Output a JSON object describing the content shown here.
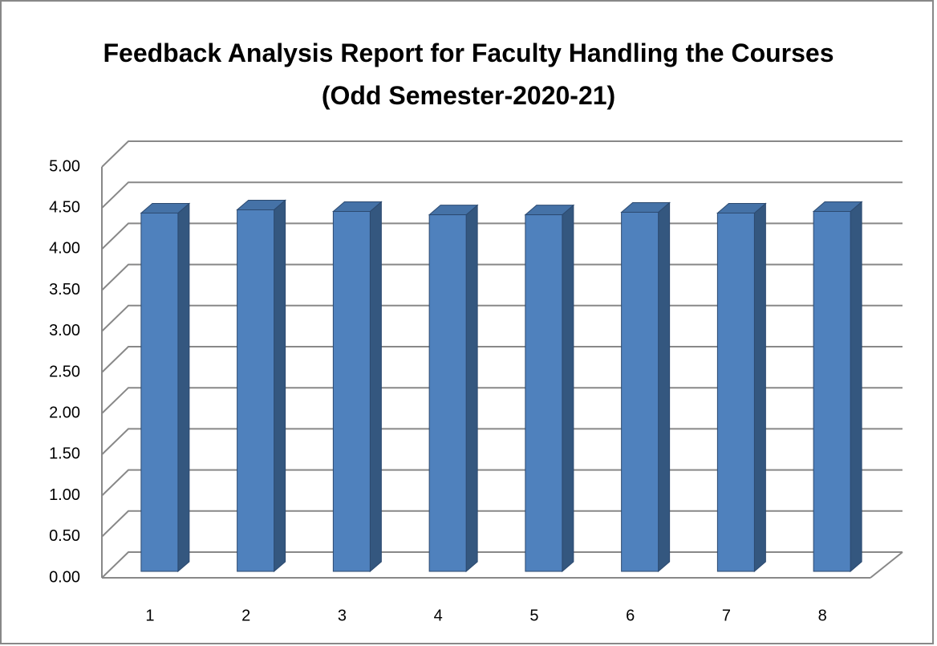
{
  "chart_data": {
    "type": "bar3d",
    "title": "Feedback Analysis Report for Faculty Handling the Courses (Odd Semester-2020-21)",
    "categories": [
      "1",
      "2",
      "3",
      "4",
      "5",
      "6",
      "7",
      "8"
    ],
    "values": [
      4.36,
      4.4,
      4.38,
      4.34,
      4.34,
      4.37,
      4.36,
      4.38
    ],
    "color": "#4f81bd",
    "ylim": [
      0,
      5
    ],
    "yticks": [
      {
        "value": 0,
        "label": "0.00"
      },
      {
        "value": 0.5,
        "label": "0.50"
      },
      {
        "value": 1,
        "label": "1.00"
      },
      {
        "value": 1.5,
        "label": "1.50"
      },
      {
        "value": 2,
        "label": "2.00"
      },
      {
        "value": 2.5,
        "label": "2.50"
      },
      {
        "value": 3,
        "label": "3.00"
      },
      {
        "value": 3.5,
        "label": "3.50"
      },
      {
        "value": 4,
        "label": "4.00"
      },
      {
        "value": 4.5,
        "label": "4.50"
      },
      {
        "value": 5,
        "label": "5.00"
      }
    ],
    "grid": true
  }
}
